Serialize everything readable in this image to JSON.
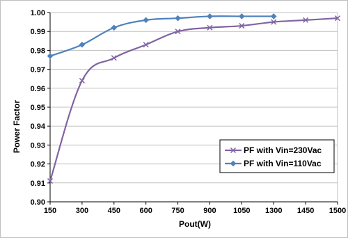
{
  "chart_data": {
    "type": "line",
    "title": "",
    "xlabel": "Pout(W)",
    "ylabel": "Power Factor",
    "x_ticks": [
      "150",
      "300",
      "450",
      "600",
      "750",
      "900",
      "1050",
      "1300",
      "1450",
      "1500"
    ],
    "y_ticks": [
      "0.90",
      "0.91",
      "0.92",
      "0.93",
      "0.94",
      "0.95",
      "0.96",
      "0.97",
      "0.98",
      "0.99",
      "1.00"
    ],
    "ylim": [
      0.9,
      1.0
    ],
    "grid": "horizontal",
    "legend_position": "bottom-right",
    "series": [
      {
        "name": "PF with Vin=230Vac",
        "color": "#8064A2",
        "marker": "x",
        "x": [
          "150",
          "300",
          "450",
          "600",
          "750",
          "900",
          "1050",
          "1300",
          "1450",
          "1500"
        ],
        "values": [
          0.911,
          0.964,
          0.976,
          0.983,
          0.99,
          0.992,
          0.993,
          0.995,
          0.996,
          0.997
        ]
      },
      {
        "name": "PF with Vin=110Vac",
        "color": "#4F81BD",
        "marker": "diamond",
        "x": [
          "150",
          "300",
          "450",
          "600",
          "750",
          "900",
          "1050",
          "1300"
        ],
        "values": [
          0.977,
          0.983,
          0.992,
          0.996,
          0.997,
          0.998,
          0.998,
          0.998
        ]
      }
    ]
  }
}
